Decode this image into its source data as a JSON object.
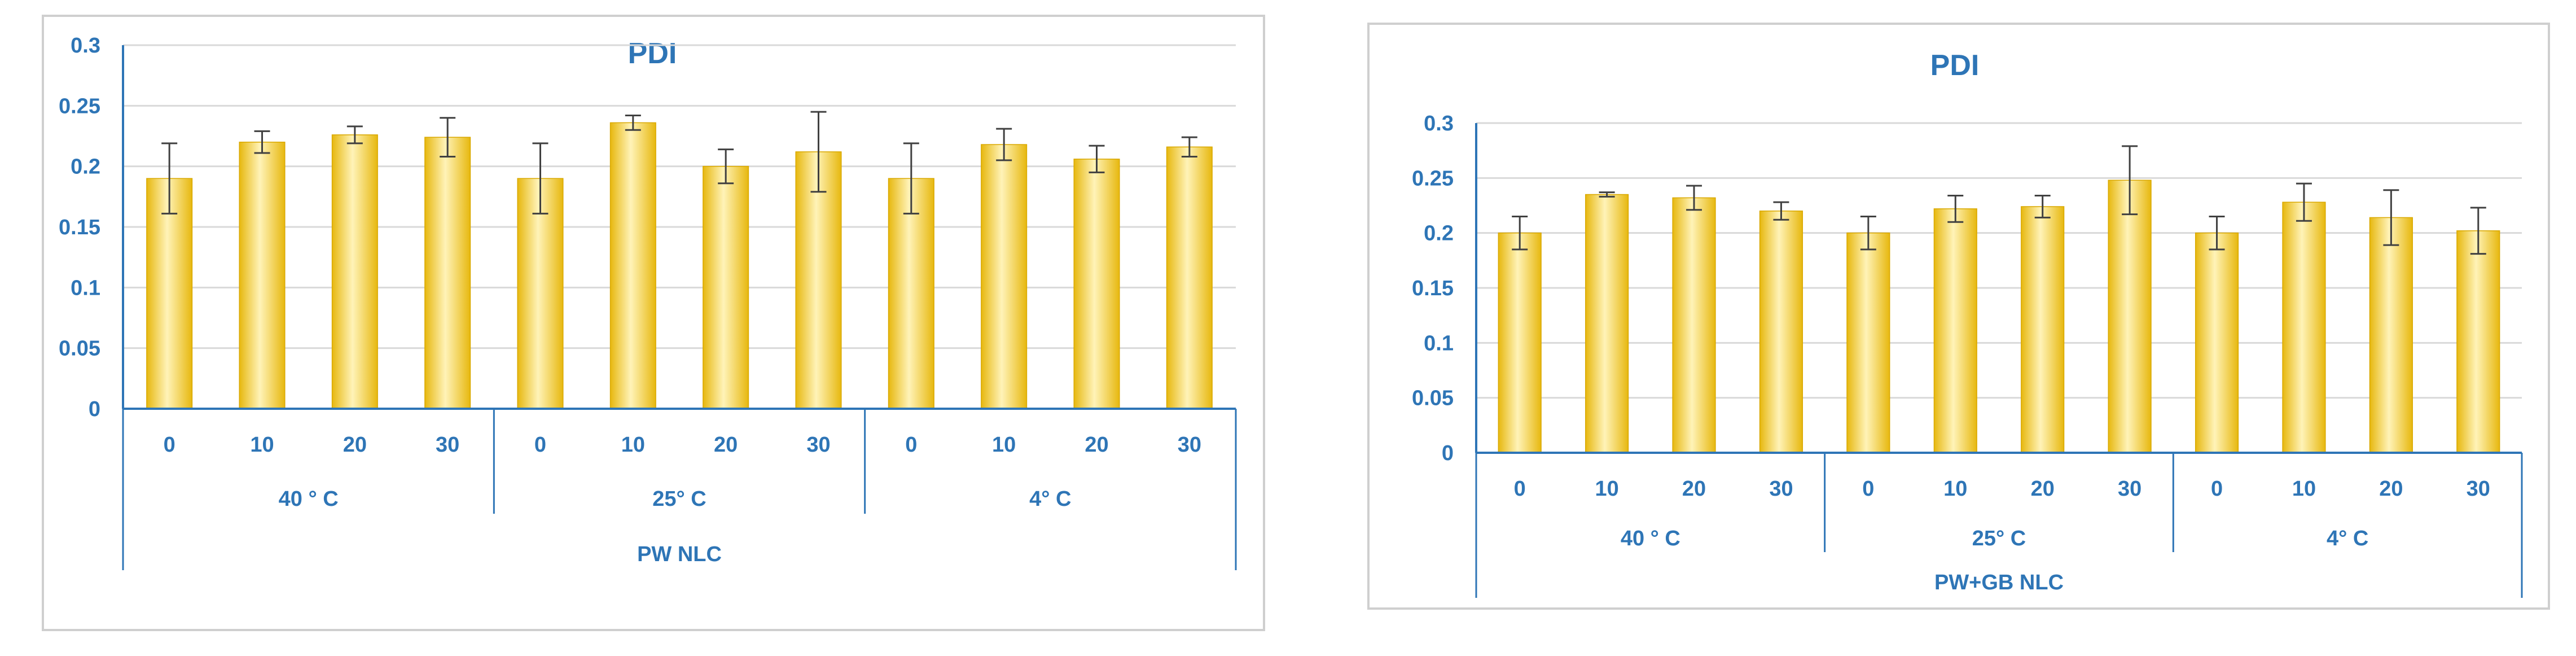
{
  "chart_data": [
    {
      "type": "bar",
      "title": "PDI",
      "ylim": [
        0,
        0.3
      ],
      "yticks": [
        "0",
        "0.05",
        "0.1",
        "0.15",
        "0.2",
        "0.25",
        "0.3"
      ],
      "grid": true,
      "categories": [
        "0",
        "10",
        "20",
        "30",
        "0",
        "10",
        "20",
        "30",
        "0",
        "10",
        "20",
        "30"
      ],
      "groups": [
        "40 ° C",
        "25° C",
        "4° C"
      ],
      "outer_label": "PW NLC",
      "values": [
        0.19,
        0.22,
        0.226,
        0.224,
        0.19,
        0.236,
        0.2,
        0.212,
        0.19,
        0.218,
        0.206,
        0.216
      ],
      "errors": [
        0.029,
        0.009,
        0.007,
        0.016,
        0.029,
        0.006,
        0.014,
        0.033,
        0.029,
        0.013,
        0.011,
        0.008
      ],
      "colors": {
        "bar": "#ffd54f",
        "bar_light": "#fff3b8",
        "bar_dark": "#e7b80f",
        "axis": "#2e75b6",
        "grid": "#d9d9d9"
      }
    },
    {
      "type": "bar",
      "title": "PDI",
      "ylim": [
        0,
        0.3
      ],
      "yticks": [
        "0",
        "0.05",
        "0.1",
        "0.15",
        "0.2",
        "0.25",
        "0.3"
      ],
      "grid": true,
      "categories": [
        "0",
        "10",
        "20",
        "30",
        "0",
        "10",
        "20",
        "30",
        "0",
        "10",
        "20",
        "30"
      ],
      "groups": [
        "40 ° C",
        "25° C",
        "4° C"
      ],
      "outer_label": "PW+GB NLC",
      "values": [
        0.2,
        0.235,
        0.232,
        0.22,
        0.2,
        0.222,
        0.224,
        0.248,
        0.2,
        0.228,
        0.214,
        0.202
      ],
      "errors": [
        0.015,
        0.002,
        0.011,
        0.008,
        0.015,
        0.012,
        0.01,
        0.031,
        0.015,
        0.017,
        0.025,
        0.021
      ],
      "colors": {
        "bar": "#ffd54f",
        "bar_light": "#fff3b8",
        "bar_dark": "#e7b80f",
        "axis": "#2e75b6",
        "grid": "#d9d9d9"
      }
    }
  ]
}
